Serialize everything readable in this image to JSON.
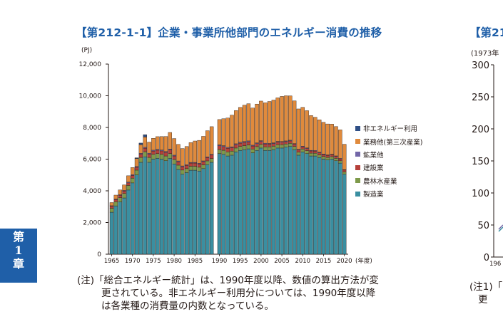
{
  "title": "【第212-1-1】企業・事業所他部門のエネルギー消費の推移",
  "unit": "(PJ)",
  "side_tab": [
    "第",
    "1",
    "章"
  ],
  "note_lines": [
    "(注)「総合エネルギー統計」は、1990年度以降、数値の算出方法が変",
    "更されている。非エネルギー利用分については、1990年度以降",
    "は各業種の消費量の内数となっている。"
  ],
  "right_panel": {
    "title": "【第212",
    "unit": "(1973年",
    "y_ticks": [
      "300",
      "250",
      "200",
      "150",
      "100",
      "50",
      "0"
    ],
    "x_tick": "196",
    "note_lines": [
      "(注1)「",
      "更"
    ]
  },
  "colors": {
    "title": "#1f5fa8",
    "製造業": "#3a8fa1",
    "農林水産業": "#7e9a4a",
    "建設業": "#b6403a",
    "鉱業他": "#7367a8",
    "業務他(第三次産業)": "#e08a3c",
    "非エネルギー利用": "#2f4f86"
  },
  "chart_data": {
    "type": "bar",
    "stacked": true,
    "ylim": [
      0,
      12000
    ],
    "y_ticks": [
      0,
      2000,
      4000,
      6000,
      8000,
      10000,
      12000
    ],
    "y_tick_labels": [
      "0",
      "2,000",
      "4,000",
      "6,000",
      "8,000",
      "10,000",
      "12,000"
    ],
    "xlabel": "(年度)",
    "x_tick_labels": [
      "1965",
      "1970",
      "1975",
      "1980",
      "1985",
      "1990",
      "1995",
      "2000",
      "2005",
      "2010",
      "2015",
      "2020"
    ],
    "break_between": [
      1989,
      1990
    ],
    "years": [
      1965,
      1966,
      1967,
      1968,
      1969,
      1970,
      1971,
      1972,
      1973,
      1974,
      1975,
      1976,
      1977,
      1978,
      1979,
      1980,
      1981,
      1982,
      1983,
      1984,
      1985,
      1986,
      1987,
      1988,
      1989,
      1990,
      1991,
      1992,
      1993,
      1994,
      1995,
      1996,
      1997,
      1998,
      1999,
      2000,
      2001,
      2002,
      2003,
      2004,
      2005,
      2006,
      2007,
      2008,
      2009,
      2010,
      2011,
      2012,
      2013,
      2014,
      2015,
      2016,
      2017,
      2018,
      2019,
      2020
    ],
    "legend": [
      "非エネルギー利用",
      "業務他(第三次産業)",
      "鉱業他",
      "建設業",
      "農林水産業",
      "製造業"
    ],
    "series": [
      {
        "name": "製造業",
        "values": [
          2650,
          3050,
          3300,
          3550,
          4050,
          4500,
          5000,
          5800,
          6150,
          5800,
          6000,
          6050,
          6000,
          5900,
          6050,
          5700,
          5350,
          5050,
          5150,
          5300,
          5300,
          5250,
          5400,
          5650,
          5800,
          6350,
          6300,
          6200,
          6250,
          6450,
          6550,
          6600,
          6650,
          6400,
          6550,
          6700,
          6550,
          6550,
          6600,
          6700,
          6700,
          6750,
          6800,
          6600,
          6250,
          6450,
          6350,
          6200,
          6200,
          6100,
          6000,
          5950,
          6000,
          5900,
          5750,
          5050
        ]
      },
      {
        "name": "農林水産業",
        "values": [
          250,
          260,
          270,
          280,
          290,
          300,
          305,
          310,
          320,
          310,
          300,
          300,
          300,
          300,
          300,
          280,
          270,
          260,
          250,
          250,
          250,
          240,
          240,
          240,
          240,
          260,
          260,
          260,
          255,
          250,
          250,
          250,
          245,
          240,
          240,
          235,
          230,
          225,
          220,
          215,
          210,
          205,
          200,
          195,
          190,
          190,
          185,
          180,
          175,
          170,
          165,
          160,
          155,
          150,
          145,
          145
        ]
      },
      {
        "name": "建設業",
        "values": [
          120,
          130,
          140,
          150,
          160,
          170,
          180,
          200,
          220,
          210,
          210,
          215,
          220,
          225,
          230,
          220,
          215,
          210,
          205,
          200,
          200,
          200,
          205,
          210,
          215,
          230,
          230,
          225,
          220,
          215,
          210,
          205,
          200,
          190,
          185,
          180,
          175,
          170,
          165,
          160,
          155,
          150,
          150,
          145,
          140,
          140,
          135,
          135,
          130,
          130,
          125,
          125,
          120,
          120,
          118,
          115
        ]
      },
      {
        "name": "鉱業他",
        "values": [
          40,
          40,
          45,
          45,
          50,
          50,
          50,
          55,
          55,
          55,
          55,
          55,
          55,
          55,
          55,
          50,
          50,
          50,
          45,
          45,
          45,
          45,
          45,
          45,
          45,
          60,
          60,
          60,
          55,
          55,
          55,
          55,
          55,
          50,
          50,
          50,
          50,
          45,
          45,
          45,
          45,
          45,
          45,
          40,
          40,
          40,
          40,
          40,
          40,
          35,
          35,
          35,
          35,
          35,
          35,
          30
        ]
      },
      {
        "name": "業務他(第三次産業)",
        "values": [
          200,
          250,
          300,
          350,
          400,
          450,
          500,
          550,
          650,
          700,
          750,
          800,
          850,
          950,
          1050,
          1050,
          1050,
          1100,
          1150,
          1250,
          1350,
          1450,
          1550,
          1650,
          1750,
          1600,
          1700,
          1850,
          2000,
          2100,
          2200,
          2300,
          2350,
          2350,
          2450,
          2500,
          2550,
          2650,
          2700,
          2750,
          2850,
          2850,
          2800,
          2700,
          2550,
          2450,
          2350,
          2200,
          2100,
          2050,
          2000,
          1950,
          1900,
          1850,
          1800,
          1600
        ]
      },
      {
        "name": "非エネルギー利用",
        "values": [
          0,
          0,
          0,
          0,
          0,
          0,
          50,
          100,
          150,
          0,
          0,
          0,
          0,
          0,
          0,
          0,
          0,
          0,
          0,
          0,
          0,
          0,
          0,
          0,
          0,
          0,
          0,
          0,
          0,
          0,
          0,
          0,
          0,
          0,
          0,
          0,
          0,
          0,
          0,
          0,
          0,
          0,
          0,
          0,
          0,
          0,
          0,
          0,
          0,
          0,
          0,
          0,
          0,
          0,
          0,
          0
        ]
      }
    ]
  }
}
